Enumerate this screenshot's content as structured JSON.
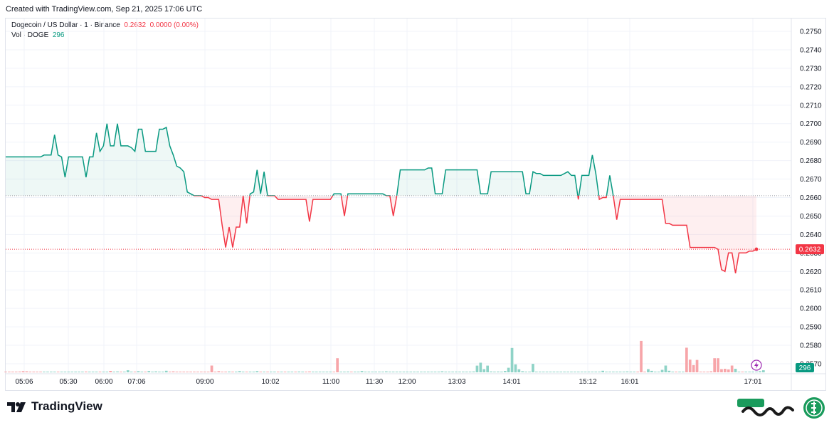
{
  "header": {
    "created": "Created with TradingView.com, Sep 21, 2025 17:06 UTC"
  },
  "legend": {
    "symbol": "Dogecoin / US Dollar · 1 · Binance",
    "price": "0.2632",
    "change": "0.0000 (0.00%)",
    "vol_label": "Vol · DOGE",
    "vol_value": "296"
  },
  "branding": {
    "tradingview": "TradingView"
  },
  "colors": {
    "up": "#089981",
    "down": "#f23645",
    "vol_up": "#8fd3c7",
    "vol_down": "#f7a5a9"
  },
  "chart_data": {
    "type": "line",
    "title": "Dogecoin / US Dollar · 1 · Binance",
    "baseline": 0.2661,
    "last_price": 0.2632,
    "last_price_label": "0.2632",
    "last_volume_label": "296",
    "ylim": [
      0.2565,
      0.2755
    ],
    "y_ticks": [
      "0.2750",
      "0.2740",
      "0.2730",
      "0.2720",
      "0.2710",
      "0.2700",
      "0.2690",
      "0.2680",
      "0.2670",
      "0.2660",
      "0.2650",
      "0.2640",
      "0.2630",
      "0.2620",
      "0.2610",
      "0.2600",
      "0.2590",
      "0.2580",
      "0.2570"
    ],
    "x_ticks": [
      "05:06",
      "05:30",
      "06:00",
      "07:06",
      "09:00",
      "10:02",
      "11:00",
      "11:30",
      "12:00",
      "13:03",
      "14:01",
      "15:12",
      "16:01",
      "17:01"
    ],
    "price": [
      0.2682,
      0.2682,
      0.2682,
      0.2682,
      0.2682,
      0.2682,
      0.2682,
      0.2682,
      0.2682,
      0.2682,
      0.2682,
      0.2683,
      0.2683,
      0.2683,
      0.2694,
      0.2683,
      0.2682,
      0.2671,
      0.2682,
      0.2682,
      0.2682,
      0.2682,
      0.2682,
      0.2671,
      0.2682,
      0.2682,
      0.2695,
      0.2685,
      0.2688,
      0.27,
      0.2688,
      0.2688,
      0.27,
      0.2688,
      0.2688,
      0.2688,
      0.2687,
      0.2685,
      0.2697,
      0.2697,
      0.2685,
      0.2685,
      0.2685,
      0.2685,
      0.2697,
      0.2697,
      0.2698,
      0.2688,
      0.2683,
      0.2677,
      0.2676,
      0.2674,
      0.2663,
      0.2662,
      0.2661,
      0.2661,
      0.2661,
      0.266,
      0.266,
      0.2659,
      0.2659,
      0.2659,
      0.2645,
      0.2633,
      0.2644,
      0.2633,
      0.2644,
      0.2644,
      0.2661,
      0.2646,
      0.2662,
      0.2663,
      0.2675,
      0.2662,
      0.2674,
      0.2661,
      0.2661,
      0.2661,
      0.2659,
      0.2659,
      0.2659,
      0.2659,
      0.2659,
      0.2659,
      0.2659,
      0.2659,
      0.2659,
      0.2647,
      0.2659,
      0.2659,
      0.2659,
      0.2659,
      0.2659,
      0.2659,
      0.2662,
      0.2662,
      0.2662,
      0.265,
      0.2662,
      0.2662,
      0.2662,
      0.2662,
      0.2662,
      0.2662,
      0.2662,
      0.2662,
      0.2662,
      0.2662,
      0.2662,
      0.2661,
      0.2661,
      0.265,
      0.2661,
      0.2675,
      0.2675,
      0.2675,
      0.2675,
      0.2675,
      0.2675,
      0.2675,
      0.2675,
      0.2676,
      0.2676,
      0.2662,
      0.2662,
      0.2662,
      0.2675,
      0.2675,
      0.2675,
      0.2675,
      0.2675,
      0.2675,
      0.2675,
      0.2675,
      0.2675,
      0.2675,
      0.2662,
      0.2662,
      0.2662,
      0.2674,
      0.2674,
      0.2674,
      0.2674,
      0.2674,
      0.2674,
      0.2674,
      0.2674,
      0.2674,
      0.2674,
      0.2662,
      0.2662,
      0.2674,
      0.2673,
      0.2673,
      0.2672,
      0.2672,
      0.2672,
      0.2672,
      0.2672,
      0.2672,
      0.2673,
      0.2674,
      0.2672,
      0.2672,
      0.2659,
      0.2672,
      0.2672,
      0.2672,
      0.2683,
      0.2673,
      0.2659,
      0.266,
      0.266,
      0.2672,
      0.2661,
      0.2648,
      0.2659,
      0.2659,
      0.2659,
      0.2659,
      0.2659,
      0.2659,
      0.2659,
      0.2659,
      0.2659,
      0.2659,
      0.2659,
      0.2659,
      0.2659,
      0.2646,
      0.2646,
      0.2645,
      0.2645,
      0.2645,
      0.2645,
      0.2645,
      0.2633,
      0.2633,
      0.2633,
      0.2633,
      0.2633,
      0.2633,
      0.2633,
      0.2633,
      0.2632,
      0.2621,
      0.262,
      0.263,
      0.263,
      0.2619,
      0.263,
      0.263,
      0.263,
      0.2631,
      0.2631,
      0.2632
    ],
    "volume": [
      0.3,
      0.5,
      0.3,
      0.8,
      1.2,
      1.8,
      1.5,
      1.0,
      0.6,
      0.4,
      0.3,
      0.2,
      0.4,
      0.9,
      0.5,
      0.3,
      0.5,
      1.1,
      0.6,
      0.8,
      0.4,
      0.5,
      0.3,
      1.2,
      0.7,
      0.3,
      0.6,
      0.4,
      0.9,
      0.5,
      2.2,
      0.8,
      1.3,
      0.5,
      0.3,
      3.2,
      0.8,
      0.6,
      1.8,
      1.0,
      0.5,
      2.0,
      0.6,
      1.4,
      0.9,
      0.4,
      2.5,
      0.6,
      1.4,
      0.8,
      0.5,
      0.3,
      1.0,
      0.7,
      0.4,
      0.9,
      0.6,
      0.8,
      0.4,
      10.5,
      0.6,
      1.8,
      0.8,
      0.5,
      1.2,
      0.7,
      1.0,
      1.9,
      0.8,
      0.9,
      0.5,
      1.1,
      1.9,
      0.9,
      0.5,
      1.0,
      0.4,
      0.6,
      0.7,
      1.1,
      0.8,
      0.5,
      0.9,
      0.6,
      1.2,
      0.9,
      0.6,
      1.3,
      0.8,
      0.5,
      0.8,
      0.6,
      1.1,
      0.9,
      0.7,
      22.0,
      1.0,
      0.6,
      1.2,
      0.9,
      0.6,
      0.5,
      2.0,
      1.0,
      0.7,
      0.5,
      1.1,
      0.8,
      0.6,
      1.4,
      1.0,
      0.8,
      0.6,
      0.9,
      0.5,
      0.7,
      0.8,
      1.0,
      0.6,
      0.5,
      0.7,
      0.9,
      1.0,
      0.7,
      0.6,
      1.5,
      0.5,
      0.8,
      0.9,
      0.6,
      0.7,
      0.8,
      0.5,
      0.9,
      1.3,
      10.4,
      15.0,
      5.0,
      10.4,
      1.3,
      1.0,
      1.2,
      0.8,
      2.1,
      7.1,
      38.0,
      12.5,
      4.8,
      1.7,
      1.1,
      0.9,
      13.2,
      0.9,
      0.6,
      0.7,
      0.5,
      0.8,
      0.6,
      0.5,
      0.4,
      0.6,
      1.0,
      0.7,
      0.8,
      0.5,
      0.9,
      0.6,
      0.7,
      0.5,
      0.8,
      0.6,
      2.4,
      0.9,
      0.7,
      0.5,
      0.6,
      0.7,
      0.9,
      1.3,
      0.8,
      0.6,
      0.5,
      49.0,
      0.8,
      5.0,
      2.3,
      1.0,
      0.9,
      3.9,
      10.6,
      2.4,
      1.0,
      1.1,
      0.8,
      0.7,
      38.5,
      19.8,
      11.3,
      19.3,
      0.6,
      0.8,
      0.7,
      1.5,
      22.0,
      22.0,
      5.0,
      5.6,
      4.6,
      10.5,
      5.5,
      0.8,
      1.1,
      0.9,
      0.9,
      0.5,
      1.1,
      1.8,
      3.2
    ],
    "volume_up": [
      0,
      0,
      0,
      0,
      0,
      0,
      0,
      0,
      0,
      0,
      0,
      1,
      1,
      1,
      1,
      0,
      1,
      1,
      1,
      1,
      1,
      1,
      1,
      0,
      1,
      1,
      1,
      0,
      1,
      1,
      0,
      1,
      1,
      0,
      1,
      1,
      1,
      0,
      1,
      1,
      0,
      1,
      1,
      1,
      1,
      1,
      1,
      0,
      0,
      0,
      0,
      0,
      0,
      0,
      0,
      0,
      0,
      0,
      0,
      0,
      0,
      0,
      0,
      0,
      1,
      0,
      1,
      1,
      1,
      0,
      1,
      1,
      1,
      0,
      1,
      0,
      1,
      1,
      0,
      1,
      0,
      1,
      1,
      0,
      1,
      1,
      0,
      0,
      1,
      1,
      1,
      1,
      1,
      1,
      0,
      0,
      1,
      1,
      1,
      0,
      1,
      1,
      1,
      1,
      1,
      1,
      1,
      1,
      1,
      1,
      1,
      1,
      1,
      1,
      1,
      1,
      1,
      1,
      1,
      1,
      1,
      1,
      1,
      1,
      1,
      1,
      1,
      1,
      1,
      1,
      1,
      1,
      1,
      1,
      1,
      1,
      1,
      1,
      1,
      1,
      1,
      1,
      1,
      1,
      1,
      1,
      1,
      1,
      1,
      1,
      1,
      1,
      1,
      1,
      1,
      1,
      1,
      1,
      1,
      1,
      1,
      1,
      1,
      1,
      1,
      1,
      1,
      1,
      1,
      1,
      1,
      1,
      1,
      1,
      1,
      1,
      1,
      1,
      1,
      1,
      1,
      0,
      0,
      0,
      1,
      1,
      1,
      1,
      1,
      1,
      1,
      1,
      0,
      1,
      1,
      0,
      0,
      0,
      0,
      0,
      0,
      0,
      0,
      0,
      0,
      0,
      0,
      0,
      0,
      1,
      1,
      0,
      1,
      1,
      1,
      1,
      1,
      1,
      1,
      1,
      1,
      1,
      1
    ]
  }
}
